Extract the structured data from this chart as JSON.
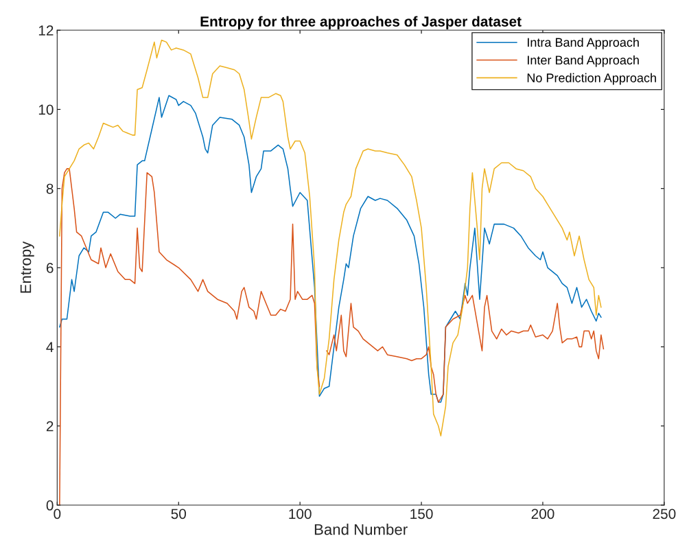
{
  "chart_data": {
    "type": "line",
    "title": "Entropy for three approaches of Jasper dataset",
    "xlabel": "Band Number",
    "ylabel": "Entropy",
    "xlim": [
      0,
      250
    ],
    "xticks": [
      0,
      50,
      100,
      150,
      200,
      250
    ],
    "ylim": [
      0,
      12
    ],
    "yticks": [
      0,
      2,
      4,
      6,
      8,
      10,
      12
    ],
    "grid": false,
    "legend": "top right",
    "marker": "none",
    "line_style": "solid",
    "series": [
      {
        "name": "Intra Band Approach",
        "color": "#0072bd",
        "x": [
          1,
          2,
          4,
          6,
          7,
          9,
          11,
          13,
          14,
          16,
          19,
          21,
          24,
          26,
          30,
          32,
          33,
          35,
          36,
          39,
          42,
          43,
          46,
          49,
          50,
          52,
          55,
          57,
          58,
          60,
          61,
          62,
          64,
          67,
          72,
          75,
          77,
          79,
          80,
          82,
          84,
          85,
          88,
          91,
          93,
          95,
          96,
          97,
          100,
          103,
          106,
          108,
          110,
          112,
          114,
          116,
          118,
          119,
          120,
          122,
          125,
          128,
          131,
          133,
          136,
          140,
          144,
          147,
          149,
          151,
          153,
          154,
          156,
          157,
          158,
          159,
          160,
          162,
          164,
          166,
          168,
          169,
          170,
          172,
          174,
          176,
          178,
          180,
          184,
          188,
          191,
          194,
          197,
          199,
          200,
          202,
          204,
          206,
          208,
          210,
          212,
          214,
          216,
          218,
          220,
          222,
          223,
          224
        ],
        "values": [
          4.5,
          4.7,
          4.7,
          5.7,
          5.4,
          6.3,
          6.5,
          6.4,
          6.8,
          6.9,
          7.4,
          7.4,
          7.25,
          7.35,
          7.3,
          7.3,
          8.6,
          8.7,
          8.7,
          9.5,
          10.3,
          9.8,
          10.35,
          10.25,
          10.1,
          10.2,
          10.1,
          9.9,
          9.7,
          9.3,
          9.0,
          8.9,
          9.6,
          9.8,
          9.75,
          9.6,
          9.3,
          8.6,
          7.9,
          8.3,
          8.5,
          8.95,
          8.95,
          9.1,
          9.0,
          8.5,
          8.0,
          7.55,
          7.9,
          7.7,
          5.5,
          2.75,
          2.95,
          3.0,
          4.0,
          5.0,
          5.7,
          6.1,
          6.0,
          6.8,
          7.5,
          7.8,
          7.7,
          7.75,
          7.7,
          7.5,
          7.2,
          6.8,
          6.1,
          5.0,
          3.3,
          2.8,
          2.8,
          2.6,
          2.6,
          2.8,
          4.5,
          4.7,
          4.9,
          4.7,
          5.6,
          5.3,
          6.0,
          7.0,
          5.2,
          7.0,
          6.6,
          7.1,
          7.1,
          7.0,
          6.8,
          6.5,
          6.3,
          6.2,
          6.4,
          6.0,
          5.9,
          5.8,
          5.6,
          5.5,
          5.1,
          5.5,
          5.0,
          5.2,
          4.9,
          4.65,
          4.85,
          4.75
        ]
      },
      {
        "name": "Inter Band Approach",
        "color": "#d95319",
        "x": [
          1,
          2,
          3,
          4,
          5,
          6,
          7,
          8,
          10,
          12,
          14,
          17,
          18,
          20,
          22,
          25,
          28,
          30,
          32,
          33,
          34,
          35,
          37,
          39,
          40,
          42,
          45,
          50,
          55,
          57,
          58,
          60,
          62,
          66,
          70,
          73,
          74,
          76,
          77,
          79,
          81,
          82,
          84,
          86,
          88,
          90,
          92,
          94,
          96,
          97,
          98,
          99,
          101,
          103,
          105,
          106,
          107,
          108,
          109,
          111,
          112,
          114,
          115,
          117,
          118,
          119,
          121,
          122,
          124,
          126,
          128,
          130,
          132,
          134,
          136,
          140,
          144,
          146,
          148,
          150,
          152,
          153,
          154,
          155,
          156,
          157,
          159,
          160,
          163,
          166,
          168,
          169,
          171,
          173,
          175,
          176,
          177,
          179,
          181,
          183,
          185,
          187,
          190,
          192,
          194,
          195,
          197,
          200,
          202,
          204,
          206,
          207,
          208,
          210,
          212,
          214,
          215,
          216,
          217,
          219,
          220,
          221,
          222,
          223,
          224,
          225
        ],
        "values": [
          0,
          8.0,
          8.4,
          8.5,
          8.5,
          8.0,
          7.5,
          6.9,
          6.8,
          6.5,
          6.2,
          6.1,
          6.5,
          6.0,
          6.35,
          5.9,
          5.7,
          5.7,
          5.6,
          7.0,
          6.0,
          5.9,
          8.4,
          8.3,
          7.9,
          6.4,
          6.2,
          6.0,
          5.7,
          5.5,
          5.4,
          5.7,
          5.4,
          5.2,
          5.1,
          4.9,
          4.7,
          5.4,
          5.5,
          5.0,
          4.9,
          4.7,
          5.4,
          5.1,
          4.8,
          4.8,
          4.95,
          4.9,
          5.2,
          7.1,
          5.2,
          5.4,
          5.2,
          5.2,
          5.3,
          5.1,
          3.5,
          3.0,
          null,
          3.9,
          3.8,
          4.3,
          3.9,
          4.8,
          3.9,
          3.75,
          5.1,
          4.5,
          4.4,
          4.2,
          4.1,
          4.0,
          3.9,
          4.0,
          3.8,
          3.75,
          3.7,
          3.65,
          3.7,
          3.7,
          3.8,
          4.0,
          3.5,
          3.3,
          2.8,
          2.6,
          2.8,
          4.5,
          4.7,
          4.8,
          5.3,
          5.1,
          5.3,
          4.6,
          3.9,
          5.0,
          5.3,
          4.4,
          4.2,
          4.45,
          4.3,
          4.4,
          4.35,
          4.4,
          4.4,
          4.55,
          4.25,
          4.3,
          4.2,
          4.4,
          5.1,
          4.5,
          4.1,
          4.2,
          4.2,
          4.25,
          4.0,
          4.0,
          4.4,
          4.4,
          4.2,
          4.4,
          3.9,
          3.7,
          4.3,
          3.95
        ]
      },
      {
        "name": "No Prediction Approach",
        "color": "#edb120",
        "x": [
          1,
          2,
          3,
          5,
          7,
          9,
          11,
          13,
          15,
          17,
          19,
          21,
          23,
          25,
          27,
          29,
          31,
          32,
          33,
          35,
          37,
          40,
          41,
          43,
          45,
          47,
          49,
          52,
          55,
          56,
          58,
          60,
          62,
          64,
          67,
          70,
          73,
          75,
          77,
          79,
          80,
          82,
          84,
          87,
          90,
          92,
          93,
          95,
          96,
          98,
          100,
          102,
          104,
          106,
          107,
          108,
          110,
          112,
          114,
          116,
          118,
          119,
          121,
          123,
          126,
          128,
          131,
          133,
          136,
          140,
          143,
          146,
          148,
          150,
          152,
          154,
          155,
          157,
          158,
          160,
          161,
          163,
          165,
          167,
          168,
          169,
          170,
          171,
          173,
          174,
          175,
          176,
          178,
          180,
          183,
          186,
          189,
          192,
          195,
          197,
          200,
          202,
          204,
          206,
          208,
          210,
          211,
          213,
          215,
          217,
          219,
          221,
          222,
          223,
          224
        ],
        "values": [
          6.8,
          7.6,
          8.3,
          8.5,
          8.7,
          9.0,
          9.1,
          9.15,
          9.0,
          9.3,
          9.65,
          9.6,
          9.55,
          9.6,
          9.45,
          9.4,
          9.35,
          9.35,
          10.5,
          10.55,
          11.0,
          11.7,
          11.3,
          11.75,
          11.7,
          11.5,
          11.55,
          11.5,
          11.4,
          11.2,
          10.8,
          10.3,
          10.3,
          10.9,
          11.1,
          11.05,
          11.0,
          10.9,
          10.5,
          9.7,
          9.25,
          9.8,
          10.3,
          10.3,
          10.4,
          10.35,
          10.2,
          9.3,
          9.0,
          9.2,
          9.2,
          8.9,
          7.8,
          6.0,
          3.5,
          2.8,
          3.2,
          4.2,
          5.7,
          6.7,
          7.4,
          7.6,
          7.8,
          8.5,
          8.95,
          9.0,
          8.95,
          8.95,
          8.9,
          8.85,
          8.6,
          8.3,
          7.7,
          7.0,
          5.5,
          3.5,
          2.3,
          2.0,
          1.75,
          2.5,
          3.5,
          4.1,
          4.3,
          5.0,
          5.5,
          6.0,
          7.5,
          8.4,
          7.0,
          6.2,
          8.0,
          8.5,
          7.9,
          8.5,
          8.65,
          8.65,
          8.5,
          8.45,
          8.3,
          8.0,
          7.8,
          7.6,
          7.4,
          7.2,
          7.0,
          6.7,
          6.9,
          6.3,
          6.8,
          6.2,
          5.7,
          5.5,
          4.8,
          5.3,
          5.0
        ]
      }
    ]
  }
}
